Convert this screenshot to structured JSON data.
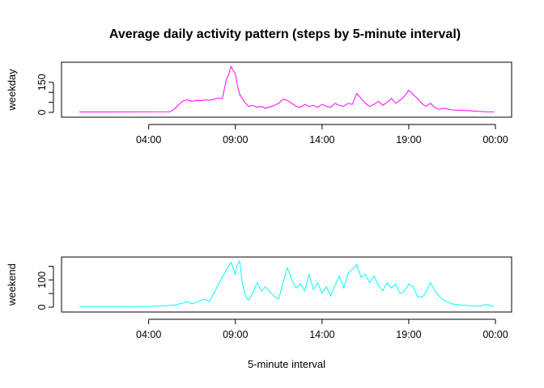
{
  "chart_data": {
    "type": "line",
    "title": "Average daily activity pattern (steps by 5-minute interval)",
    "xlabel": "5-minute interval",
    "x_unit": "hours",
    "x_range": [
      0,
      24
    ],
    "x_ticks": [
      4,
      9,
      14,
      19,
      24
    ],
    "x_tick_labels": [
      "04:00",
      "09:00",
      "14:00",
      "19:00",
      "00:00"
    ],
    "grid": false,
    "legend": "none",
    "panels": [
      {
        "ylabel": "weekday",
        "color": "#ff00ff",
        "ylim": [
          0,
          230
        ],
        "y_ticks": [
          0,
          50,
          100,
          150
        ],
        "y_tick_labels": [
          "0",
          "",
          "",
          "150"
        ],
        "x": [
          0,
          5.25,
          5.5,
          5.75,
          6.0,
          6.25,
          6.5,
          6.75,
          7.0,
          7.25,
          7.5,
          7.75,
          8.0,
          8.25,
          8.5,
          8.6,
          8.75,
          8.9,
          9.0,
          9.1,
          9.25,
          9.5,
          9.75,
          10.0,
          10.25,
          10.5,
          10.75,
          11.0,
          11.25,
          11.5,
          11.75,
          12.0,
          12.25,
          12.5,
          12.75,
          13.0,
          13.25,
          13.5,
          13.75,
          14.0,
          14.25,
          14.5,
          14.75,
          15.0,
          15.25,
          15.5,
          15.75,
          16.0,
          16.25,
          16.5,
          16.75,
          17.0,
          17.25,
          17.5,
          17.75,
          18.0,
          18.25,
          18.5,
          18.75,
          19.0,
          19.25,
          19.5,
          19.75,
          20.0,
          20.25,
          20.5,
          20.75,
          21.0,
          21.5,
          22.0,
          22.5,
          23.0,
          23.5,
          23.92
        ],
        "values": [
          2,
          3,
          18,
          40,
          58,
          62,
          55,
          60,
          58,
          62,
          60,
          65,
          72,
          70,
          170,
          185,
          230,
          205,
          195,
          140,
          90,
          55,
          30,
          35,
          25,
          30,
          20,
          28,
          35,
          45,
          65,
          60,
          45,
          30,
          25,
          40,
          30,
          35,
          25,
          40,
          30,
          25,
          45,
          35,
          30,
          45,
          40,
          95,
          70,
          45,
          30,
          40,
          55,
          35,
          50,
          70,
          45,
          60,
          80,
          110,
          90,
          70,
          45,
          30,
          45,
          25,
          15,
          20,
          12,
          10,
          8,
          5,
          3,
          2
        ]
      },
      {
        "ylabel": "weekend",
        "color": "#00ffff",
        "ylim": [
          0,
          175
        ],
        "y_ticks": [
          0,
          50,
          100,
          150
        ],
        "y_tick_labels": [
          "0",
          "",
          "100",
          ""
        ],
        "x": [
          0,
          3.0,
          4.0,
          5.0,
          5.5,
          6.0,
          6.25,
          6.5,
          6.75,
          7.0,
          7.25,
          7.5,
          7.75,
          8.0,
          8.25,
          8.5,
          8.75,
          9.0,
          9.1,
          9.25,
          9.4,
          9.6,
          9.75,
          10.0,
          10.25,
          10.5,
          10.75,
          11.0,
          11.25,
          11.5,
          11.75,
          12.0,
          12.25,
          12.5,
          12.75,
          13.0,
          13.25,
          13.5,
          13.75,
          14.0,
          14.25,
          14.5,
          14.75,
          15.0,
          15.25,
          15.5,
          15.75,
          16.0,
          16.25,
          16.5,
          16.75,
          17.0,
          17.25,
          17.5,
          17.75,
          18.0,
          18.25,
          18.5,
          18.75,
          19.0,
          19.25,
          19.5,
          19.75,
          20.0,
          20.25,
          20.5,
          20.75,
          21.0,
          21.5,
          22.0,
          22.5,
          23.0,
          23.5,
          23.92
        ],
        "values": [
          2,
          2,
          3,
          5,
          8,
          15,
          20,
          12,
          18,
          25,
          30,
          20,
          50,
          80,
          110,
          140,
          165,
          120,
          155,
          170,
          90,
          40,
          25,
          50,
          90,
          60,
          75,
          55,
          40,
          30,
          90,
          145,
          100,
          70,
          85,
          60,
          120,
          65,
          90,
          50,
          75,
          40,
          80,
          115,
          70,
          125,
          140,
          155,
          110,
          120,
          90,
          115,
          80,
          60,
          90,
          70,
          85,
          50,
          60,
          85,
          75,
          40,
          35,
          55,
          90,
          60,
          40,
          25,
          12,
          8,
          5,
          3,
          10,
          2
        ]
      }
    ]
  }
}
